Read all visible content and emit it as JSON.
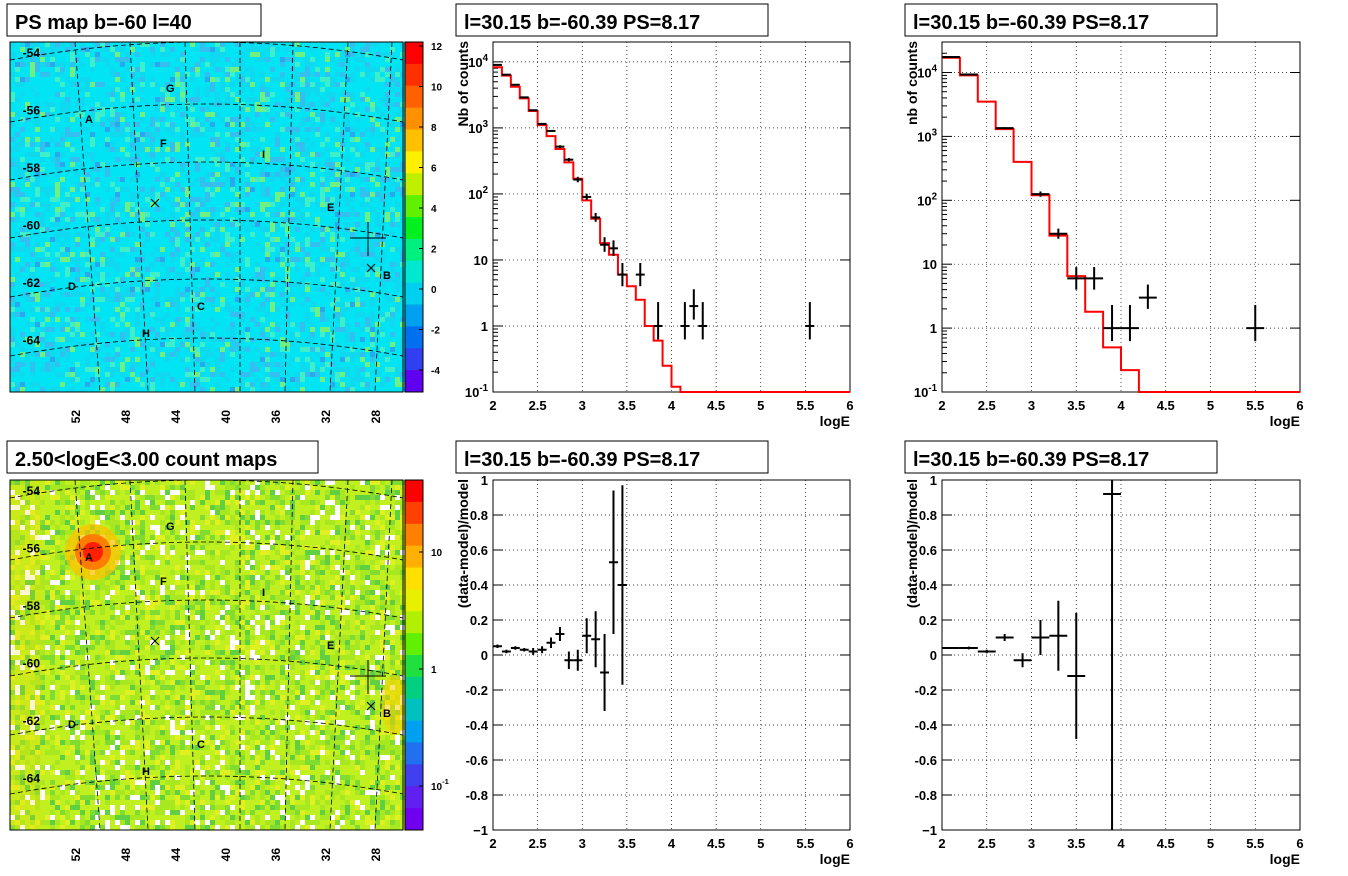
{
  "chart_data": [
    {
      "type": "heatmap",
      "title": "PS map b=-60 l=40",
      "x_ticks": [
        "52",
        "48",
        "44",
        "40",
        "36",
        "32",
        "28"
      ],
      "y_ticks": [
        "-54",
        "-56",
        "-58",
        "-60",
        "-62",
        "-64"
      ],
      "colorbar": {
        "scale": "linear",
        "ticks": [
          "12",
          "10",
          "8",
          "6",
          "4",
          "2",
          "0",
          "-2",
          "-4"
        ]
      },
      "background_level": 1,
      "labels": [
        "A",
        "B",
        "C",
        "D",
        "E",
        "F",
        "G",
        "H",
        "I"
      ],
      "colors": {
        "background": "#00e0f0",
        "warm": "#60f060",
        "cool": "#30b0e8"
      }
    },
    {
      "type": "line",
      "title": "l=30.15 b=-60.39 PS=8.17",
      "xlabel": "logE",
      "ylabel": "Nb of counts",
      "yscale": "log",
      "xlim": [
        2,
        6
      ],
      "ylim": [
        0.1,
        20000
      ],
      "x_ticks": [
        "2",
        "2.5",
        "3",
        "3.5",
        "4",
        "4.5",
        "5",
        "5.5",
        "6"
      ],
      "y_ticks": [
        "10^-1",
        "1",
        "10",
        "10^2",
        "10^3",
        "10^4"
      ],
      "bin_width": 0.1,
      "series": [
        {
          "kind": "model",
          "color": "#ff0000",
          "x": [
            2.0,
            2.1,
            2.2,
            2.3,
            2.4,
            2.5,
            2.6,
            2.7,
            2.8,
            2.9,
            3.0,
            3.1,
            3.2,
            3.3,
            3.4,
            3.5,
            3.6,
            3.7,
            3.8,
            3.9,
            4.0,
            4.1,
            4.2,
            4.3,
            4.4,
            4.5,
            4.6,
            4.7,
            4.8,
            4.9,
            5.0,
            5.1,
            5.2,
            5.3,
            5.4,
            5.5,
            5.6,
            5.7,
            5.8,
            5.9,
            6.0
          ],
          "y": [
            8300,
            6200,
            4200,
            2800,
            1800,
            1100,
            750,
            480,
            300,
            170,
            80,
            42,
            18,
            12,
            6,
            4,
            2.5,
            1,
            0.6,
            0.25,
            0.12,
            0.08,
            0.08,
            0.08,
            0.08,
            0.08,
            0.08,
            0.08,
            0.08,
            0.08,
            0.08,
            0.08,
            0.08,
            0.08,
            0.08,
            0.08,
            0.08,
            0.08,
            0.08,
            0.08,
            0.08
          ]
        },
        {
          "kind": "data",
          "color": "#000000",
          "points": [
            [
              2.05,
              9000,
              1.01,
              1.01
            ],
            [
              2.15,
              6400,
              1.01,
              1.01
            ],
            [
              2.25,
              4500,
              1.02,
              1.02
            ],
            [
              2.35,
              2900,
              1.02,
              1.02
            ],
            [
              2.45,
              1850,
              1.02,
              1.02
            ],
            [
              2.55,
              1150,
              1.03,
              1.03
            ],
            [
              2.65,
              900,
              1.03,
              1.03
            ],
            [
              2.75,
              520,
              1.05,
              1.05
            ],
            [
              2.85,
              330,
              1.06,
              1.06
            ],
            [
              2.95,
              165,
              1.1,
              1.1
            ],
            [
              3.05,
              90,
              1.11,
              1.12
            ],
            [
              3.15,
              44,
              1.16,
              1.17
            ],
            [
              3.25,
              17,
              1.28,
              1.3
            ],
            [
              3.35,
              15,
              1.3,
              1.32
            ],
            [
              3.45,
              6,
              1.5,
              1.5
            ],
            [
              3.65,
              6,
              1.5,
              1.5
            ],
            [
              3.85,
              1,
              1.6,
              2.3
            ],
            [
              4.15,
              1,
              1.6,
              2.3
            ],
            [
              4.25,
              2,
              1.6,
              1.8
            ],
            [
              4.35,
              1,
              1.6,
              2.3
            ],
            [
              5.55,
              1,
              1.6,
              2.3
            ]
          ]
        }
      ]
    },
    {
      "type": "line",
      "title": "l=30.15 b=-60.39 PS=8.17",
      "xlabel": "logE",
      "ylabel": "nb of counts",
      "yscale": "log",
      "xlim": [
        2,
        6
      ],
      "ylim": [
        0.1,
        30000
      ],
      "x_ticks": [
        "2",
        "2.5",
        "3",
        "3.5",
        "4",
        "4.5",
        "5",
        "5.5",
        "6"
      ],
      "y_ticks": [
        "10^-1",
        "1",
        "10",
        "10^2",
        "10^3",
        "10^4"
      ],
      "bin_width": 0.2,
      "series": [
        {
          "kind": "model",
          "color": "#ff0000",
          "x": [
            2.0,
            2.2,
            2.4,
            2.6,
            2.8,
            3.0,
            3.2,
            3.4,
            3.6,
            3.8,
            4.0,
            4.2,
            4.4,
            4.6,
            4.8,
            5.0,
            5.2,
            5.4,
            5.6,
            5.8,
            6.0
          ],
          "y": [
            17000,
            9000,
            3500,
            1300,
            400,
            120,
            28,
            6.5,
            1.8,
            0.5,
            0.22,
            0.08,
            0.08,
            0.08,
            0.08,
            0.08,
            0.08,
            0.08,
            0.08,
            0.08,
            0.08
          ]
        },
        {
          "kind": "data",
          "color": "#000000",
          "points": [
            [
              2.1,
              17500,
              1.01,
              1.01
            ],
            [
              2.3,
              9300,
              1.01,
              1.01
            ],
            [
              2.7,
              1350,
              1.03,
              1.03
            ],
            [
              3.1,
              125,
              1.1,
              1.1
            ],
            [
              3.3,
              30,
              1.2,
              1.2
            ],
            [
              3.5,
              6,
              1.5,
              1.5
            ],
            [
              3.7,
              6,
              1.5,
              1.5
            ],
            [
              3.9,
              1,
              1.6,
              2.3
            ],
            [
              4.1,
              1,
              1.6,
              2.3
            ],
            [
              4.3,
              3,
              1.5,
              1.6
            ],
            [
              5.5,
              1,
              1.6,
              2.3
            ]
          ]
        }
      ]
    },
    {
      "type": "heatmap",
      "title": "2.50<logE<3.00 count maps",
      "x_ticks": [
        "52",
        "48",
        "44",
        "40",
        "36",
        "32",
        "28"
      ],
      "y_ticks": [
        "-54",
        "-56",
        "-58",
        "-60",
        "-62",
        "-64"
      ],
      "colorbar": {
        "scale": "log",
        "ticks": [
          "10",
          "1",
          "10^-1"
        ]
      },
      "labels": [
        "A",
        "B",
        "C",
        "D",
        "E",
        "F",
        "G",
        "H",
        "I"
      ],
      "colors": {
        "background": "#b8f020",
        "hot": "#ff2000",
        "warm": "#ffd000",
        "cool": "#30d030"
      }
    },
    {
      "type": "scatter",
      "title": "l=30.15 b=-60.39 PS=8.17",
      "xlabel": "logE",
      "ylabel": "(data-model)/model",
      "xlim": [
        2,
        6
      ],
      "ylim": [
        -1,
        1
      ],
      "x_ticks": [
        "2",
        "2.5",
        "3",
        "3.5",
        "4",
        "4.5",
        "5",
        "5.5",
        "6"
      ],
      "y_ticks": [
        "-1",
        "-0.8",
        "-0.6",
        "-0.4",
        "-0.2",
        "0",
        "0.2",
        "0.4",
        "0.6",
        "0.8",
        "1"
      ],
      "points": [
        {
          "x": 2.05,
          "y": 0.05,
          "err": 0.01,
          "xerr": 0.05
        },
        {
          "x": 2.15,
          "y": 0.02,
          "err": 0.01,
          "xerr": 0.05
        },
        {
          "x": 2.25,
          "y": 0.04,
          "err": 0.01,
          "xerr": 0.05
        },
        {
          "x": 2.35,
          "y": 0.03,
          "err": 0.01,
          "xerr": 0.05
        },
        {
          "x": 2.45,
          "y": 0.02,
          "err": 0.02,
          "xerr": 0.05
        },
        {
          "x": 2.55,
          "y": 0.03,
          "err": 0.02,
          "xerr": 0.05
        },
        {
          "x": 2.65,
          "y": 0.07,
          "err": 0.03,
          "xerr": 0.05
        },
        {
          "x": 2.75,
          "y": 0.12,
          "err": 0.04,
          "xerr": 0.05
        },
        {
          "x": 2.85,
          "y": -0.03,
          "err": 0.05,
          "xerr": 0.05
        },
        {
          "x": 2.95,
          "y": -0.03,
          "err": 0.06,
          "xerr": 0.05
        },
        {
          "x": 3.05,
          "y": 0.11,
          "err": 0.1,
          "xerr": 0.05
        },
        {
          "x": 3.15,
          "y": 0.09,
          "err": 0.16,
          "xerr": 0.05
        },
        {
          "x": 3.25,
          "y": -0.1,
          "err": 0.22,
          "xerr": 0.05
        },
        {
          "x": 3.35,
          "y": 0.53,
          "err": 0.41,
          "xerr": 0.05
        },
        {
          "x": 3.45,
          "y": 0.4,
          "err": 0.57,
          "xerr": 0.05
        }
      ]
    },
    {
      "type": "scatter",
      "title": "l=30.15 b=-60.39 PS=8.17",
      "xlabel": "logE",
      "ylabel": "(data-model)/model",
      "xlim": [
        2,
        6
      ],
      "ylim": [
        -1,
        1
      ],
      "x_ticks": [
        "2",
        "2.5",
        "3",
        "3.5",
        "4",
        "4.5",
        "5",
        "5.5",
        "6"
      ],
      "y_ticks": [
        "-1",
        "-0.8",
        "-0.6",
        "-0.4",
        "-0.2",
        "0",
        "0.2",
        "0.4",
        "0.6",
        "0.8",
        "1"
      ],
      "points": [
        {
          "x": 2.1,
          "y": 0.04,
          "err": 0.005,
          "xerr": 0.1
        },
        {
          "x": 2.3,
          "y": 0.04,
          "err": 0.008,
          "xerr": 0.1
        },
        {
          "x": 2.5,
          "y": 0.02,
          "err": 0.01,
          "xerr": 0.1
        },
        {
          "x": 2.7,
          "y": 0.1,
          "err": 0.02,
          "xerr": 0.1
        },
        {
          "x": 2.9,
          "y": -0.03,
          "err": 0.04,
          "xerr": 0.1
        },
        {
          "x": 3.1,
          "y": 0.1,
          "err": 0.1,
          "xerr": 0.1
        },
        {
          "x": 3.3,
          "y": 0.11,
          "err": 0.2,
          "xerr": 0.1
        },
        {
          "x": 3.5,
          "y": -0.12,
          "err": 0.36,
          "xerr": 0.1
        },
        {
          "x": 3.9,
          "y": 0.92,
          "err": 1.92,
          "xerr": 0.1
        }
      ]
    }
  ]
}
